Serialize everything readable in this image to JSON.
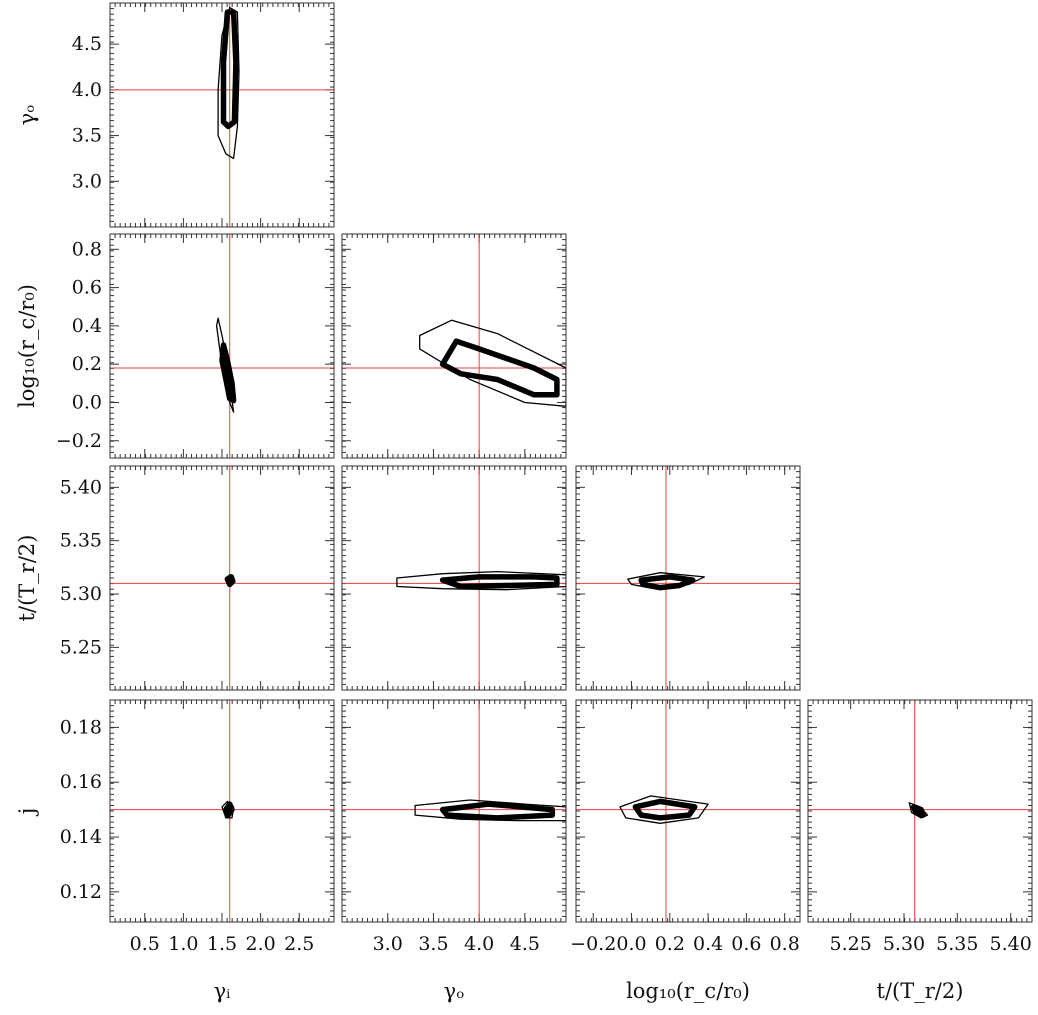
{
  "chart_data": {
    "type": "contour",
    "parameters": [
      {
        "key": "gi",
        "label": "γᵢ",
        "range": [
          0.05,
          2.95
        ],
        "ticks": [
          0.5,
          1.0,
          1.5,
          2.0,
          2.5
        ],
        "tick_labels": [
          "0.5",
          "1.0",
          "1.5",
          "2.0",
          "2.5"
        ],
        "true": 1.6
      },
      {
        "key": "go",
        "label": "γₒ",
        "range": [
          2.5,
          4.95
        ],
        "ticks": [
          3.0,
          3.5,
          4.0,
          4.5
        ],
        "tick_labels": [
          "3.0",
          "3.5",
          "4.0",
          "4.5"
        ],
        "true": 4.0
      },
      {
        "key": "lr",
        "label": "log₁₀(r_c/r₀)",
        "range": [
          -0.29,
          0.88
        ],
        "ticks": [
          -0.2,
          0.0,
          0.2,
          0.4,
          0.6,
          0.8
        ],
        "tick_labels": [
          "−0.2",
          "0.0",
          "0.2",
          "0.4",
          "0.6",
          "0.8"
        ],
        "true": 0.18
      },
      {
        "key": "t",
        "label": "t/(T_r/2)",
        "range": [
          5.21,
          5.42
        ],
        "ticks": [
          5.25,
          5.3,
          5.35,
          5.4
        ],
        "tick_labels": [
          "5.25",
          "5.30",
          "5.35",
          "5.40"
        ],
        "true": 5.31
      },
      {
        "key": "j",
        "label": "j",
        "range": [
          0.109,
          0.19
        ],
        "ticks": [
          0.12,
          0.14,
          0.16,
          0.18
        ],
        "tick_labels": [
          "0.12",
          "0.14",
          "0.16",
          "0.18"
        ],
        "true": 0.15
      }
    ],
    "panels": [
      {
        "row": 1,
        "col": 0,
        "x": "gi",
        "y": "go",
        "contours": [
          {
            "level": "outer",
            "points": [
              [
                1.55,
                3.3
              ],
              [
                1.45,
                3.5
              ],
              [
                1.45,
                4.0
              ],
              [
                1.5,
                4.6
              ],
              [
                1.6,
                4.9
              ],
              [
                1.7,
                4.85
              ],
              [
                1.72,
                4.2
              ],
              [
                1.7,
                3.6
              ],
              [
                1.65,
                3.25
              ]
            ]
          },
          {
            "level": "inner",
            "points": [
              [
                1.52,
                3.65
              ],
              [
                1.52,
                4.3
              ],
              [
                1.57,
                4.85
              ],
              [
                1.65,
                4.85
              ],
              [
                1.68,
                4.3
              ],
              [
                1.66,
                3.65
              ],
              [
                1.58,
                3.6
              ]
            ]
          }
        ]
      },
      {
        "row": 2,
        "col": 0,
        "x": "gi",
        "y": "lr",
        "contours": [
          {
            "level": "outer",
            "points": [
              [
                1.45,
                0.44
              ],
              [
                1.5,
                0.35
              ],
              [
                1.55,
                0.25
              ],
              [
                1.6,
                0.1
              ],
              [
                1.65,
                -0.05
              ],
              [
                1.6,
                0.0
              ],
              [
                1.55,
                0.1
              ],
              [
                1.48,
                0.25
              ],
              [
                1.43,
                0.4
              ]
            ]
          },
          {
            "level": "inner",
            "points": [
              [
                1.52,
                0.3
              ],
              [
                1.57,
                0.22
              ],
              [
                1.63,
                0.1
              ],
              [
                1.65,
                0.01
              ],
              [
                1.6,
                0.02
              ],
              [
                1.55,
                0.12
              ],
              [
                1.5,
                0.22
              ]
            ]
          }
        ]
      },
      {
        "row": 2,
        "col": 1,
        "x": "go",
        "y": "lr",
        "contours": [
          {
            "level": "outer",
            "points": [
              [
                3.35,
                0.35
              ],
              [
                3.7,
                0.43
              ],
              [
                4.2,
                0.36
              ],
              [
                4.95,
                0.18
              ],
              [
                4.95,
                -0.02
              ],
              [
                4.5,
                0.0
              ],
              [
                3.9,
                0.12
              ],
              [
                3.35,
                0.28
              ]
            ]
          },
          {
            "level": "inner",
            "points": [
              [
                3.6,
                0.2
              ],
              [
                3.75,
                0.32
              ],
              [
                4.0,
                0.28
              ],
              [
                4.6,
                0.18
              ],
              [
                4.85,
                0.12
              ],
              [
                4.85,
                0.04
              ],
              [
                4.6,
                0.04
              ],
              [
                4.2,
                0.12
              ],
              [
                3.8,
                0.15
              ]
            ]
          }
        ]
      },
      {
        "row": 3,
        "col": 0,
        "x": "gi",
        "y": "t",
        "contours": [
          {
            "level": "outer",
            "points": [
              [
                1.55,
                5.315
              ],
              [
                1.6,
                5.318
              ],
              [
                1.65,
                5.314
              ],
              [
                1.64,
                5.309
              ],
              [
                1.58,
                5.308
              ]
            ]
          },
          {
            "level": "inner",
            "points": [
              [
                1.57,
                5.314
              ],
              [
                1.62,
                5.316
              ],
              [
                1.64,
                5.312
              ],
              [
                1.6,
                5.309
              ]
            ]
          }
        ]
      },
      {
        "row": 3,
        "col": 1,
        "x": "go",
        "y": "t",
        "contours": [
          {
            "level": "outer",
            "points": [
              [
                3.1,
                5.315
              ],
              [
                3.6,
                5.319
              ],
              [
                4.2,
                5.321
              ],
              [
                4.95,
                5.318
              ],
              [
                4.95,
                5.307
              ],
              [
                4.3,
                5.304
              ],
              [
                3.6,
                5.305
              ],
              [
                3.1,
                5.307
              ]
            ]
          },
          {
            "level": "inner",
            "points": [
              [
                3.6,
                5.313
              ],
              [
                4.0,
                5.316
              ],
              [
                4.6,
                5.316
              ],
              [
                4.85,
                5.315
              ],
              [
                4.85,
                5.309
              ],
              [
                4.3,
                5.308
              ],
              [
                3.8,
                5.307
              ]
            ]
          }
        ]
      },
      {
        "row": 3,
        "col": 2,
        "x": "lr",
        "y": "t",
        "contours": [
          {
            "level": "outer",
            "points": [
              [
                -0.02,
                5.314
              ],
              [
                0.15,
                5.32
              ],
              [
                0.38,
                5.316
              ],
              [
                0.3,
                5.309
              ],
              [
                0.15,
                5.304
              ],
              [
                0.0,
                5.309
              ]
            ]
          },
          {
            "level": "inner",
            "points": [
              [
                0.05,
                5.313
              ],
              [
                0.2,
                5.316
              ],
              [
                0.32,
                5.313
              ],
              [
                0.25,
                5.308
              ],
              [
                0.15,
                5.306
              ],
              [
                0.06,
                5.309
              ]
            ]
          }
        ]
      },
      {
        "row": 4,
        "col": 0,
        "x": "gi",
        "y": "j",
        "contours": [
          {
            "level": "outer",
            "points": [
              [
                1.5,
                0.151
              ],
              [
                1.57,
                0.153
              ],
              [
                1.65,
                0.151
              ],
              [
                1.63,
                0.147
              ],
              [
                1.55,
                0.147
              ]
            ]
          },
          {
            "level": "inner",
            "points": [
              [
                1.55,
                0.15
              ],
              [
                1.6,
                0.152
              ],
              [
                1.63,
                0.15
              ],
              [
                1.58,
                0.148
              ]
            ]
          }
        ]
      },
      {
        "row": 4,
        "col": 1,
        "x": "go",
        "y": "j",
        "contours": [
          {
            "level": "outer",
            "points": [
              [
                3.3,
                0.1515
              ],
              [
                3.9,
                0.1535
              ],
              [
                4.5,
                0.152
              ],
              [
                4.95,
                0.151
              ],
              [
                4.95,
                0.146
              ],
              [
                4.4,
                0.146
              ],
              [
                3.8,
                0.1465
              ],
              [
                3.3,
                0.148
              ]
            ]
          },
          {
            "level": "inner",
            "points": [
              [
                3.6,
                0.15
              ],
              [
                4.1,
                0.152
              ],
              [
                4.8,
                0.15
              ],
              [
                4.8,
                0.148
              ],
              [
                4.2,
                0.147
              ],
              [
                3.65,
                0.148
              ]
            ]
          }
        ]
      },
      {
        "row": 4,
        "col": 2,
        "x": "lr",
        "y": "j",
        "contours": [
          {
            "level": "outer",
            "points": [
              [
                -0.06,
                0.151
              ],
              [
                0.1,
                0.155
              ],
              [
                0.4,
                0.152
              ],
              [
                0.35,
                0.147
              ],
              [
                0.15,
                0.145
              ],
              [
                -0.03,
                0.147
              ]
            ]
          },
          {
            "level": "inner",
            "points": [
              [
                0.02,
                0.151
              ],
              [
                0.15,
                0.153
              ],
              [
                0.33,
                0.151
              ],
              [
                0.3,
                0.148
              ],
              [
                0.15,
                0.147
              ],
              [
                0.05,
                0.148
              ]
            ]
          }
        ]
      },
      {
        "row": 4,
        "col": 3,
        "x": "t",
        "y": "j",
        "contours": [
          {
            "level": "outer",
            "points": [
              [
                5.305,
                0.1525
              ],
              [
                5.315,
                0.151
              ],
              [
                5.322,
                0.148
              ],
              [
                5.316,
                0.147
              ],
              [
                5.307,
                0.149
              ]
            ]
          },
          {
            "level": "inner",
            "points": [
              [
                5.309,
                0.151
              ],
              [
                5.316,
                0.15
              ],
              [
                5.318,
                0.148
              ],
              [
                5.311,
                0.149
              ]
            ]
          }
        ]
      }
    ],
    "grid": false,
    "truth_line_color": "#e8403c",
    "contour_color": "#000000"
  }
}
